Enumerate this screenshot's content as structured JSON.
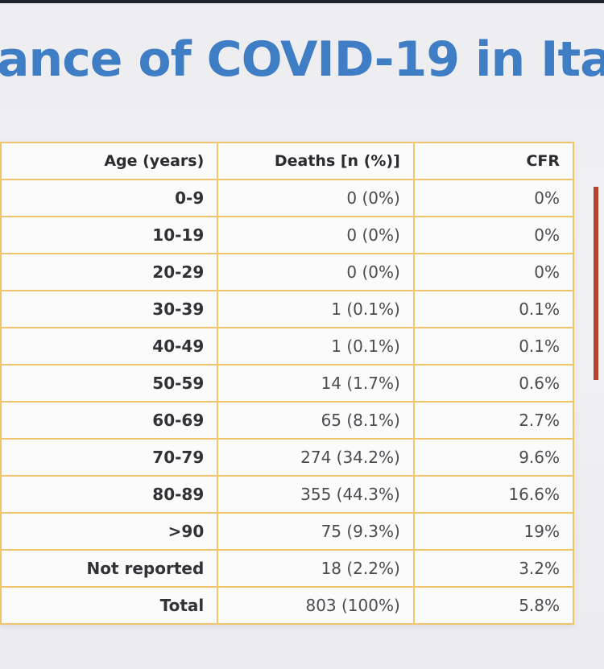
{
  "slide": {
    "title": "ance of COVID-19 in Ita"
  },
  "table": {
    "headers": [
      "Age (years)",
      "Deaths [n (%)]",
      "CFR"
    ],
    "rows": [
      [
        "0-9",
        "0 (0%)",
        "0%"
      ],
      [
        "10-19",
        "0 (0%)",
        "0%"
      ],
      [
        "20-29",
        "0 (0%)",
        "0%"
      ],
      [
        "30-39",
        "1 (0.1%)",
        "0.1%"
      ],
      [
        "40-49",
        "1 (0.1%)",
        "0.1%"
      ],
      [
        "50-59",
        "14 (1.7%)",
        "0.6%"
      ],
      [
        "60-69",
        "65 (8.1%)",
        "2.7%"
      ],
      [
        "70-79",
        "274 (34.2%)",
        "9.6%"
      ],
      [
        "80-89",
        "355 (44.3%)",
        "16.6%"
      ],
      [
        ">90",
        "75 (9.3%)",
        "19%"
      ],
      [
        "Not reported",
        "18 (2.2%)",
        "3.2%"
      ],
      [
        "Total",
        "803 (100%)",
        "5.8%"
      ]
    ]
  },
  "colors": {
    "title": "#3f7dc4",
    "table_border": "#f1c56c",
    "accent_bar": "#b5452a"
  }
}
